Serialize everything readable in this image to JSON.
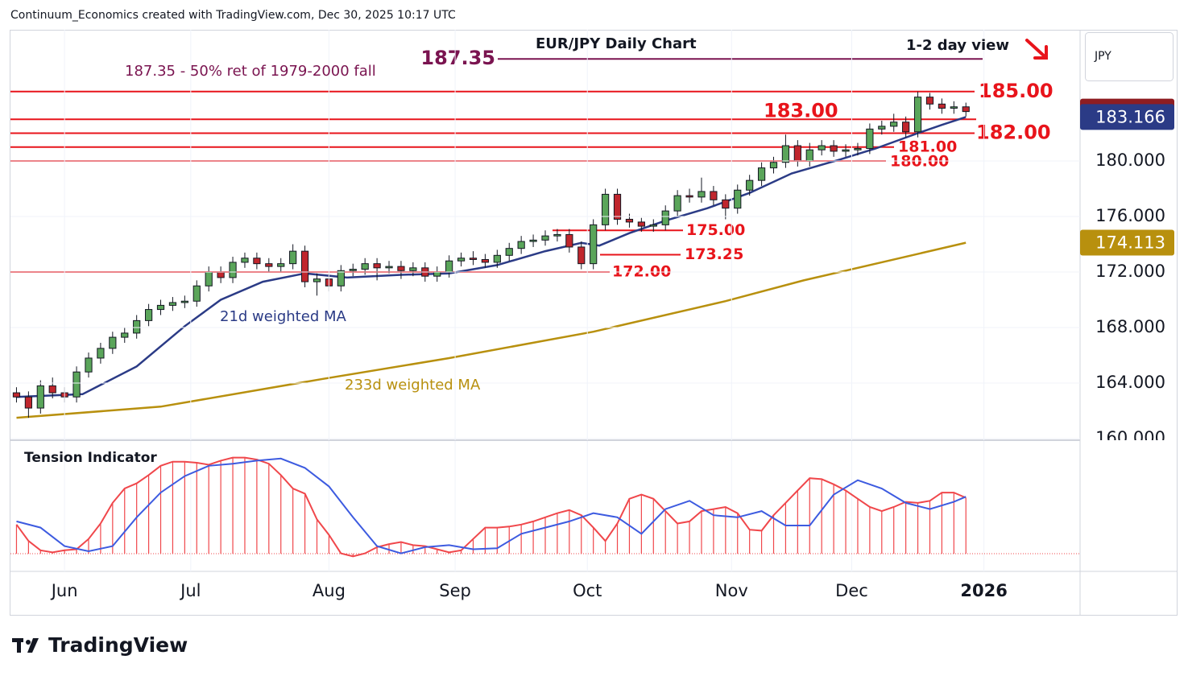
{
  "chart_data": [
    {
      "type": "candlestick",
      "title": "EUR/JPY Daily Chart",
      "subtitle": "1-2 day view",
      "source": "Continuum_Economics created with TradingView.com, Dec 30, 2025 10:17 UTC",
      "brand": "TradingView",
      "currency": "JPY",
      "note": "187.35 - 50% ret of 1979-2000 fall",
      "up_color": "#5aa55a",
      "down_color": "#c0262d",
      "last_price_color": "#8e1d22",
      "xlim": [
        -1,
        177
      ],
      "xticks": [
        {
          "value": 8,
          "label": "Jun"
        },
        {
          "value": 29,
          "label": "Jul"
        },
        {
          "value": 52,
          "label": "Aug"
        },
        {
          "value": 73,
          "label": "Sep"
        },
        {
          "value": 95,
          "label": "Oct"
        },
        {
          "value": 119,
          "label": "Nov"
        },
        {
          "value": 139,
          "label": "Dec"
        },
        {
          "value": 161,
          "label": "2026"
        }
      ],
      "ylim": [
        160,
        189.45
      ],
      "yticks": [
        {
          "value": 160,
          "label": "160.000"
        },
        {
          "value": 164,
          "label": "164.000"
        },
        {
          "value": 168,
          "label": "168.000"
        },
        {
          "value": 172,
          "label": "172.000"
        },
        {
          "value": 176,
          "label": "176.000"
        },
        {
          "value": 180,
          "label": "180.000"
        }
      ],
      "grid": true,
      "x": [
        0,
        2,
        4,
        6,
        8,
        10,
        12,
        14,
        16,
        18,
        20,
        22,
        24,
        26,
        28,
        30,
        32,
        34,
        36,
        38,
        40,
        42,
        44,
        46,
        48,
        50,
        52,
        54,
        56,
        58,
        60,
        62,
        64,
        66,
        68,
        70,
        72,
        74,
        76,
        78,
        80,
        82,
        84,
        86,
        88,
        90,
        92,
        94,
        96,
        98,
        100,
        102,
        104,
        106,
        108,
        110,
        112,
        114,
        116,
        118,
        120,
        122,
        124,
        126,
        128,
        130,
        132,
        134,
        136,
        138,
        140,
        142,
        144,
        146,
        148,
        150,
        152,
        154,
        156,
        158
      ],
      "open": [
        163.3,
        163.0,
        162.2,
        163.8,
        163.3,
        163.0,
        164.8,
        165.8,
        166.5,
        167.3,
        167.6,
        168.5,
        169.3,
        169.6,
        169.8,
        169.9,
        171.0,
        172.0,
        171.6,
        172.7,
        173.0,
        172.6,
        172.4,
        172.6,
        173.5,
        171.3,
        171.5,
        171.0,
        172.1,
        172.2,
        172.6,
        172.3,
        172.4,
        172.1,
        172.3,
        171.7,
        172.0,
        172.8,
        173.0,
        172.9,
        172.7,
        173.2,
        173.7,
        174.2,
        174.3,
        174.6,
        174.7,
        173.8,
        172.6,
        175.4,
        177.6,
        175.8,
        175.6,
        175.3,
        175.4,
        176.4,
        177.5,
        177.4,
        177.8,
        177.2,
        176.6,
        177.9,
        178.6,
        179.5,
        179.9,
        181.1,
        180.0,
        180.8,
        181.1,
        180.7,
        180.8,
        180.9,
        182.3,
        182.5,
        182.8,
        182.1,
        184.6,
        184.1,
        183.8,
        183.9
      ],
      "high": [
        163.7,
        163.4,
        164.2,
        164.4,
        163.7,
        165.2,
        166.2,
        166.9,
        167.7,
        168.0,
        168.9,
        169.7,
        170.0,
        170.2,
        170.3,
        171.4,
        172.4,
        172.4,
        173.1,
        173.4,
        173.4,
        173.0,
        173.0,
        174.0,
        173.9,
        171.9,
        171.9,
        172.5,
        172.6,
        173.0,
        173.0,
        172.8,
        172.8,
        172.7,
        172.7,
        172.4,
        173.2,
        173.4,
        173.5,
        173.3,
        173.6,
        174.1,
        174.6,
        174.7,
        175.0,
        175.1,
        175.1,
        174.2,
        175.8,
        178.0,
        178.0,
        176.2,
        175.9,
        175.8,
        176.8,
        177.9,
        178.0,
        178.8,
        178.2,
        177.6,
        178.3,
        179.0,
        179.9,
        180.3,
        181.9,
        181.5,
        181.3,
        181.5,
        181.5,
        181.2,
        181.3,
        182.7,
        182.9,
        183.4,
        183.2,
        185.0,
        184.9,
        184.5,
        184.3,
        184.2
      ],
      "low": [
        162.6,
        161.5,
        161.8,
        162.9,
        162.6,
        162.6,
        164.4,
        165.4,
        166.1,
        166.9,
        167.2,
        168.1,
        168.9,
        169.2,
        169.4,
        169.5,
        170.6,
        171.2,
        171.2,
        172.3,
        172.2,
        172.0,
        172.0,
        172.2,
        170.9,
        170.3,
        170.6,
        170.6,
        171.7,
        171.8,
        171.4,
        171.9,
        171.5,
        171.7,
        171.3,
        171.3,
        171.6,
        172.4,
        172.5,
        172.3,
        172.3,
        172.8,
        173.3,
        173.8,
        173.9,
        174.2,
        173.4,
        172.2,
        172.2,
        175.0,
        175.4,
        175.2,
        174.9,
        174.9,
        175.0,
        176.0,
        177.0,
        177.0,
        176.8,
        175.8,
        176.2,
        177.5,
        178.2,
        179.1,
        179.5,
        179.6,
        179.6,
        180.4,
        180.3,
        180.3,
        180.4,
        180.5,
        181.9,
        182.1,
        181.7,
        181.7,
        183.7,
        183.4,
        183.4,
        183.2
      ],
      "close": [
        163.0,
        162.2,
        163.8,
        163.3,
        163.0,
        164.8,
        165.8,
        166.5,
        167.3,
        167.6,
        168.5,
        169.3,
        169.6,
        169.8,
        169.9,
        171.0,
        172.0,
        171.6,
        172.7,
        173.0,
        172.6,
        172.4,
        172.6,
        173.5,
        171.3,
        171.5,
        171.0,
        172.1,
        172.2,
        172.6,
        172.3,
        172.4,
        172.1,
        172.3,
        171.7,
        172.0,
        172.8,
        173.0,
        172.9,
        172.7,
        173.2,
        173.7,
        174.2,
        174.3,
        174.6,
        174.7,
        173.8,
        172.6,
        175.4,
        177.6,
        175.8,
        175.6,
        175.3,
        175.4,
        176.4,
        177.5,
        177.4,
        177.8,
        177.2,
        176.6,
        177.9,
        178.6,
        179.5,
        179.9,
        181.1,
        180.0,
        180.8,
        181.1,
        180.7,
        180.8,
        180.9,
        182.3,
        182.5,
        182.8,
        182.1,
        184.6,
        184.1,
        183.8,
        183.9,
        183.559
      ],
      "series": [
        {
          "name": "21d weighted MA",
          "color": "#2b3b86",
          "x": [
            0,
            11,
            20,
            28,
            34,
            41,
            48,
            55,
            64,
            72,
            80,
            88,
            94,
            97,
            102,
            108,
            115,
            122,
            129,
            137,
            143,
            150,
            154,
            158
          ],
          "values": [
            163.0,
            163.2,
            165.2,
            168.1,
            170.0,
            171.3,
            171.9,
            171.6,
            171.8,
            171.9,
            172.5,
            173.5,
            174.1,
            173.9,
            174.8,
            175.7,
            176.6,
            177.7,
            179.1,
            180.1,
            180.9,
            182.0,
            182.6,
            183.166
          ]
        },
        {
          "name": "233d weighted MA",
          "color": "#b8900e",
          "x": [
            0,
            24,
            51,
            72,
            96,
            118,
            131,
            145,
            158
          ],
          "values": [
            161.5,
            162.3,
            164.3,
            165.8,
            167.7,
            169.9,
            171.4,
            172.8,
            174.113
          ]
        }
      ],
      "levels": [
        {
          "value": 187.35,
          "label": "187.35",
          "color": "#7a1450"
        },
        {
          "value": 185,
          "label": "185.00",
          "color": "#e8141b"
        },
        {
          "value": 183,
          "label": "183.00",
          "color": "#e8141b"
        },
        {
          "value": 182,
          "label": "182.00",
          "color": "#e8141b"
        },
        {
          "value": 181,
          "label": "181.00",
          "color": "#e8141b"
        },
        {
          "value": 180,
          "label": "180.00",
          "color": "#e8141b"
        },
        {
          "value": 175,
          "label": "175.00",
          "color": "#e8141b"
        },
        {
          "value": 173.25,
          "label": "173.25",
          "color": "#e8141b"
        },
        {
          "value": 172,
          "label": "172.00",
          "color": "#e8141b"
        }
      ]
    },
    {
      "type": "indicator",
      "title": "Tension Indicator",
      "xlim": [
        -1,
        177
      ],
      "ylim": [
        0,
        100
      ],
      "series": [
        {
          "color": "#f0474b",
          "style": "histogram",
          "x": [
            0,
            2,
            4,
            6,
            8,
            10,
            12,
            14,
            16,
            18,
            20,
            22,
            24,
            26,
            28,
            30,
            32,
            34,
            36,
            38,
            40,
            42,
            44,
            46,
            48,
            50,
            52,
            54,
            56,
            58,
            60,
            62,
            64,
            66,
            68,
            70,
            72,
            74,
            76,
            78,
            80,
            82,
            84,
            86,
            88,
            90,
            92,
            94,
            96,
            98,
            100,
            102,
            104,
            106,
            108,
            110,
            112,
            114,
            116,
            118,
            120,
            122,
            124,
            126,
            128,
            130,
            132,
            134,
            136,
            138,
            140,
            142,
            144,
            146,
            148,
            150,
            152,
            154,
            156,
            158
          ],
          "values": [
            33,
            17,
            8,
            6,
            8,
            9,
            19,
            34,
            54,
            68,
            73,
            81,
            90,
            94,
            94,
            93,
            91,
            95,
            98,
            98,
            96,
            92,
            81,
            68,
            63,
            38,
            23,
            5,
            2,
            5,
            11,
            14,
            16,
            13,
            12,
            9,
            6,
            8,
            19,
            30,
            30,
            31,
            33,
            36,
            40,
            44,
            47,
            42,
            30,
            17,
            34,
            58,
            62,
            58,
            46,
            34,
            36,
            46,
            48,
            50,
            44,
            28,
            27,
            42,
            54,
            66,
            78,
            77,
            72,
            66,
            58,
            50,
            46,
            50,
            55,
            54,
            56,
            64,
            64,
            59
          ]
        },
        {
          "color": "#3d5be0",
          "style": "line",
          "x": [
            0,
            4,
            8,
            12,
            16,
            20,
            24,
            28,
            32,
            36,
            40,
            44,
            48,
            52,
            56,
            60,
            64,
            68,
            72,
            76,
            80,
            84,
            88,
            92,
            96,
            100,
            104,
            108,
            112,
            116,
            120,
            124,
            128,
            132,
            136,
            140,
            144,
            148,
            152,
            156,
            158
          ],
          "values": [
            36,
            30,
            12,
            7,
            12,
            40,
            64,
            80,
            90,
            92,
            95,
            97,
            88,
            70,
            40,
            12,
            5,
            11,
            13,
            9,
            10,
            24,
            30,
            36,
            44,
            40,
            24,
            48,
            56,
            42,
            40,
            46,
            32,
            32,
            62,
            76,
            68,
            54,
            48,
            55,
            60
          ]
        }
      ]
    }
  ]
}
